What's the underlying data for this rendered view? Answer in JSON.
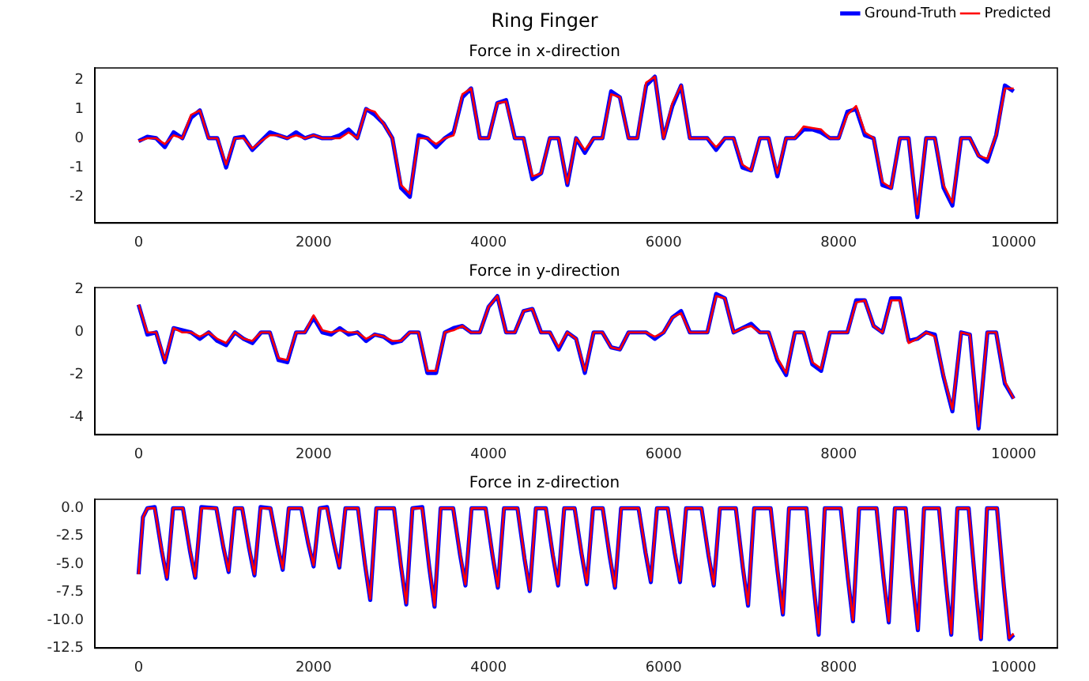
{
  "chart_data": [
    {
      "type": "line",
      "title": "Force in x-direction",
      "annotations": [
        "Ring Finger"
      ],
      "legend": "top right",
      "grid": false,
      "marker": "none",
      "line_style": "solid",
      "xlim": [
        -500,
        10500
      ],
      "xticks": [
        0,
        2000,
        4000,
        6000,
        8000,
        10000
      ],
      "ylim": [
        -2.9,
        2.4
      ],
      "yticks": [
        -2,
        -1,
        0,
        1,
        2
      ],
      "x": [
        0,
        100,
        200,
        300,
        400,
        500,
        600,
        700,
        800,
        900,
        1000,
        1100,
        1200,
        1300,
        1400,
        1500,
        1600,
        1700,
        1800,
        1900,
        2000,
        2100,
        2200,
        2300,
        2400,
        2500,
        2600,
        2700,
        2800,
        2900,
        3000,
        3100,
        3200,
        3300,
        3400,
        3500,
        3600,
        3700,
        3800,
        3900,
        4000,
        4100,
        4200,
        4300,
        4400,
        4500,
        4600,
        4700,
        4800,
        4900,
        5000,
        5100,
        5200,
        5300,
        5400,
        5500,
        5600,
        5700,
        5800,
        5900,
        6000,
        6100,
        6200,
        6300,
        6400,
        6500,
        6600,
        6700,
        6800,
        6900,
        7000,
        7100,
        7200,
        7300,
        7400,
        7500,
        7600,
        7700,
        7800,
        7900,
        8000,
        8100,
        8200,
        8300,
        8400,
        8500,
        8600,
        8700,
        8800,
        8900,
        9000,
        9100,
        9200,
        9300,
        9400,
        9500,
        9600,
        9700,
        9800,
        9900,
        10000
      ],
      "series": [
        {
          "name": "Ground-Truth",
          "color": "#0000ff",
          "values": [
            -0.1,
            0.05,
            0,
            -0.3,
            0.2,
            0,
            0.7,
            0.95,
            0,
            0,
            -1.0,
            0,
            0.05,
            -0.4,
            -0.1,
            0.2,
            0.1,
            0,
            0.2,
            0,
            0.1,
            0,
            0,
            0.1,
            0.3,
            0,
            1.0,
            0.8,
            0.5,
            0,
            -1.7,
            -2.0,
            0.1,
            0,
            -0.3,
            0,
            0.2,
            1.4,
            1.7,
            0,
            0,
            1.2,
            1.3,
            0,
            0,
            -1.4,
            -1.2,
            0,
            0,
            -1.6,
            0,
            -0.5,
            0,
            0,
            1.6,
            1.4,
            0,
            0,
            1.8,
            2.1,
            0,
            1.1,
            1.8,
            0,
            0,
            0,
            -0.4,
            0,
            0,
            -1.0,
            -1.1,
            0,
            0,
            -1.3,
            0,
            0,
            0.3,
            0.3,
            0.2,
            0,
            0,
            0.9,
            1.0,
            0.1,
            0,
            -1.6,
            -1.7,
            0,
            0,
            -2.7,
            0,
            0,
            -1.7,
            -2.3,
            0,
            0,
            -0.6,
            -0.8,
            0.1,
            1.8,
            1.6
          ]
        },
        {
          "name": "Predicted",
          "color": "#ff0000",
          "values": [
            -0.1,
            0,
            0,
            -0.2,
            0.1,
            0,
            0.8,
            0.95,
            0,
            0,
            -0.9,
            0,
            0,
            -0.35,
            -0.1,
            0.1,
            0.1,
            0,
            0.1,
            0,
            0.1,
            0,
            0,
            0,
            0.2,
            0,
            1.0,
            0.9,
            0.5,
            0,
            -1.6,
            -1.9,
            0,
            0,
            -0.2,
            0,
            0.1,
            1.5,
            1.7,
            0,
            0,
            1.2,
            1.25,
            0,
            0,
            -1.3,
            -1.2,
            0,
            0,
            -1.55,
            0,
            -0.4,
            0,
            0,
            1.5,
            1.4,
            0,
            0,
            1.9,
            2.1,
            0,
            1.2,
            1.8,
            0,
            0,
            0,
            -0.3,
            0,
            0,
            -0.9,
            -1.1,
            0,
            0,
            -1.2,
            0,
            0,
            0.4,
            0.35,
            0.3,
            0,
            0,
            0.8,
            1.1,
            0.2,
            0,
            -1.5,
            -1.7,
            0,
            0,
            -2.6,
            0,
            0,
            -1.6,
            -2.2,
            0,
            0,
            -0.6,
            -0.7,
            0.1,
            1.7,
            1.7
          ]
        }
      ]
    },
    {
      "type": "line",
      "title": "Force in y-direction",
      "legend": false,
      "grid": false,
      "marker": "none",
      "line_style": "solid",
      "xlim": [
        -500,
        10500
      ],
      "xticks": [
        0,
        2000,
        4000,
        6000,
        8000,
        10000
      ],
      "ylim": [
        -4.8,
        2.1
      ],
      "yticks": [
        -4,
        -2,
        0,
        2
      ],
      "x": [
        0,
        100,
        200,
        300,
        400,
        500,
        600,
        700,
        800,
        900,
        1000,
        1100,
        1200,
        1300,
        1400,
        1500,
        1600,
        1700,
        1800,
        1900,
        2000,
        2100,
        2200,
        2300,
        2400,
        2500,
        2600,
        2700,
        2800,
        2900,
        3000,
        3100,
        3200,
        3300,
        3400,
        3500,
        3600,
        3700,
        3800,
        3900,
        4000,
        4100,
        4200,
        4300,
        4400,
        4500,
        4600,
        4700,
        4800,
        4900,
        5000,
        5100,
        5200,
        5300,
        5400,
        5500,
        5600,
        5700,
        5800,
        5900,
        6000,
        6100,
        6200,
        6300,
        6400,
        6500,
        6600,
        6700,
        6800,
        6900,
        7000,
        7100,
        7200,
        7300,
        7400,
        7500,
        7600,
        7700,
        7800,
        7900,
        8000,
        8100,
        8200,
        8300,
        8400,
        8500,
        8600,
        8700,
        8800,
        8900,
        9000,
        9100,
        9200,
        9300,
        9400,
        9500,
        9600,
        9700,
        9800,
        9900,
        10000
      ],
      "series": [
        {
          "color": "#0000ff",
          "values": [
            1.3,
            -0.1,
            0,
            -1.4,
            0.2,
            0.1,
            0,
            -0.3,
            0,
            -0.4,
            -0.6,
            0,
            -0.3,
            -0.5,
            0,
            0,
            -1.3,
            -1.4,
            0,
            0,
            0.7,
            0,
            -0.1,
            0.2,
            -0.1,
            0,
            -0.4,
            -0.1,
            -0.2,
            -0.5,
            -0.4,
            0,
            0,
            -1.9,
            -1.9,
            0,
            0.2,
            0.3,
            0,
            0,
            1.2,
            1.7,
            0,
            0,
            1.0,
            1.1,
            0,
            0,
            -0.8,
            0,
            -0.3,
            -1.9,
            0,
            0,
            -0.7,
            -0.8,
            0,
            0,
            0,
            -0.3,
            0,
            0.7,
            1.0,
            0,
            0,
            0,
            1.8,
            1.6,
            0,
            0.2,
            0.4,
            0,
            0,
            -1.3,
            -2.0,
            0,
            0,
            -1.5,
            -1.8,
            0,
            0,
            0,
            1.5,
            1.5,
            0.3,
            0,
            1.6,
            1.6,
            -0.4,
            -0.3,
            0,
            -0.1,
            -2.1,
            -3.7,
            0,
            -0.1,
            -4.5,
            0,
            0,
            -2.4,
            -3.1
          ]
        },
        {
          "color": "#ff0000",
          "values": [
            1.3,
            0,
            0,
            -1.3,
            0.2,
            0,
            0,
            -0.2,
            0,
            -0.3,
            -0.5,
            0,
            -0.3,
            -0.4,
            0,
            0,
            -1.2,
            -1.3,
            0,
            0,
            0.8,
            0.1,
            0,
            0.1,
            0,
            0,
            -0.3,
            -0.1,
            -0.2,
            -0.4,
            -0.4,
            0,
            0,
            -1.8,
            -1.8,
            0,
            0.1,
            0.3,
            0,
            0,
            1.2,
            1.7,
            0,
            0,
            1.0,
            1.1,
            0,
            0,
            -0.7,
            0,
            -0.3,
            -1.8,
            0,
            0,
            -0.7,
            -0.8,
            0,
            0,
            0,
            -0.2,
            0,
            0.7,
            0.9,
            0,
            0,
            0,
            1.7,
            1.6,
            0,
            0.2,
            0.3,
            0,
            0,
            -1.2,
            -1.9,
            0,
            0,
            -1.4,
            -1.7,
            0,
            0,
            0,
            1.4,
            1.5,
            0.3,
            0,
            1.5,
            1.5,
            -0.5,
            -0.3,
            0,
            -0.2,
            -2.0,
            -3.6,
            0,
            -0.1,
            -4.4,
            0,
            0,
            -2.3,
            -3.1
          ]
        }
      ]
    },
    {
      "type": "line",
      "title": "Force in z-direction",
      "legend": false,
      "grid": false,
      "marker": "none",
      "line_style": "solid",
      "xlim": [
        -500,
        10500
      ],
      "xticks": [
        0,
        2000,
        4000,
        6000,
        8000,
        10000
      ],
      "ylim": [
        -12.5,
        0.8
      ],
      "yticks": [
        {
          "value": 0,
          "label": "0.0"
        },
        {
          "value": -2.5,
          "label": "-2.5"
        },
        {
          "value": -5,
          "label": "-5.0"
        },
        {
          "value": -7.5,
          "label": "-7.5"
        },
        {
          "value": -10,
          "label": "-10.0"
        },
        {
          "value": -12.5,
          "label": "-12.5"
        }
      ],
      "x": [
        0,
        50,
        100,
        184,
        264,
        324,
        394,
        507,
        587,
        647,
        717,
        889,
        969,
        1029,
        1099,
        1184,
        1264,
        1324,
        1394,
        1507,
        1587,
        1647,
        1717,
        1860,
        1940,
        2000,
        2070,
        2154,
        2234,
        2294,
        2364,
        2507,
        2587,
        2647,
        2717,
        2919,
        2999,
        3059,
        3129,
        3242,
        3322,
        3382,
        3452,
        3595,
        3675,
        3735,
        3805,
        3966,
        4046,
        4106,
        4176,
        4330,
        4410,
        4470,
        4540,
        4654,
        4734,
        4794,
        4864,
        4983,
        5063,
        5123,
        5193,
        5304,
        5384,
        5444,
        5514,
        5714,
        5794,
        5854,
        5924,
        6047,
        6127,
        6187,
        6257,
        6433,
        6513,
        6573,
        6643,
        6825,
        6905,
        6965,
        7035,
        7223,
        7303,
        7363,
        7433,
        7632,
        7712,
        7772,
        7842,
        8024,
        8104,
        8164,
        8234,
        8433,
        8513,
        8573,
        8643,
        8766,
        8846,
        8906,
        8976,
        9147,
        9227,
        9287,
        9357,
        9486,
        9566,
        9626,
        9696,
        9810,
        9890,
        9950,
        10000
      ],
      "series": [
        {
          "color": "#0000ff",
          "values": [
            -5.9,
            -0.8,
            0,
            0.1,
            -3.8,
            -6.3,
            0,
            0,
            -3.8,
            -6.2,
            0.1,
            0,
            -3.5,
            -5.7,
            0,
            0,
            -3.6,
            -6.0,
            0.1,
            0,
            -3.3,
            -5.5,
            0,
            0,
            -3.2,
            -5.2,
            0,
            0.1,
            -3.2,
            -5.3,
            0,
            0,
            -5.0,
            -8.2,
            0,
            0,
            -5.2,
            -8.6,
            0,
            0.1,
            -5.3,
            -8.8,
            0,
            0,
            -4.2,
            -6.9,
            0,
            0,
            -4.3,
            -7.1,
            0,
            0,
            -4.5,
            -7.4,
            0,
            0,
            -4.2,
            -6.9,
            0,
            0,
            -4.1,
            -6.8,
            0,
            0,
            -4.3,
            -7.1,
            0,
            0,
            -4.0,
            -6.6,
            0,
            0,
            -4.0,
            -6.6,
            0,
            0,
            -4.2,
            -6.9,
            0,
            0,
            -5.3,
            -8.7,
            0,
            0,
            -5.7,
            -9.5,
            0,
            0,
            -6.8,
            -11.3,
            0,
            0,
            -6.1,
            -10.1,
            0,
            0,
            -6.2,
            -10.2,
            0,
            0,
            -6.6,
            -10.9,
            0,
            0,
            -6.8,
            -11.3,
            0,
            0,
            -7.1,
            -11.7,
            0,
            0,
            -7.1,
            -11.7,
            -11.3
          ]
        },
        {
          "color": "#ff0000",
          "values": [
            -5.9,
            -0.8,
            0,
            0,
            -3.7,
            -6.2,
            0,
            0,
            -3.7,
            -6.1,
            0,
            0,
            -3.4,
            -5.6,
            0,
            0,
            -3.5,
            -5.9,
            0,
            0,
            -3.2,
            -5.4,
            0,
            0,
            -3.1,
            -5.1,
            0,
            0,
            -3.1,
            -5.2,
            0,
            0,
            -4.9,
            -8.1,
            0,
            0,
            -5.1,
            -8.5,
            0,
            0,
            -5.2,
            -8.7,
            0,
            0,
            -4.1,
            -6.8,
            0,
            0,
            -4.2,
            -7.0,
            0,
            0,
            -4.4,
            -7.3,
            0,
            0,
            -4.1,
            -6.8,
            0,
            0,
            -4.0,
            -6.7,
            0,
            0,
            -4.2,
            -7.0,
            0,
            0,
            -3.9,
            -6.5,
            0,
            0,
            -3.9,
            -6.5,
            0,
            0,
            -4.1,
            -6.8,
            0,
            0,
            -5.2,
            -8.6,
            0,
            0,
            -5.6,
            -9.4,
            0,
            0,
            -6.7,
            -11.2,
            0,
            0,
            -6.0,
            -10.0,
            0,
            0,
            -6.1,
            -10.1,
            0,
            0,
            -6.5,
            -10.8,
            0,
            0,
            -6.7,
            -11.2,
            0,
            0,
            -7.0,
            -11.6,
            0,
            0,
            -7.0,
            -11.6,
            -11.2
          ]
        }
      ]
    }
  ]
}
